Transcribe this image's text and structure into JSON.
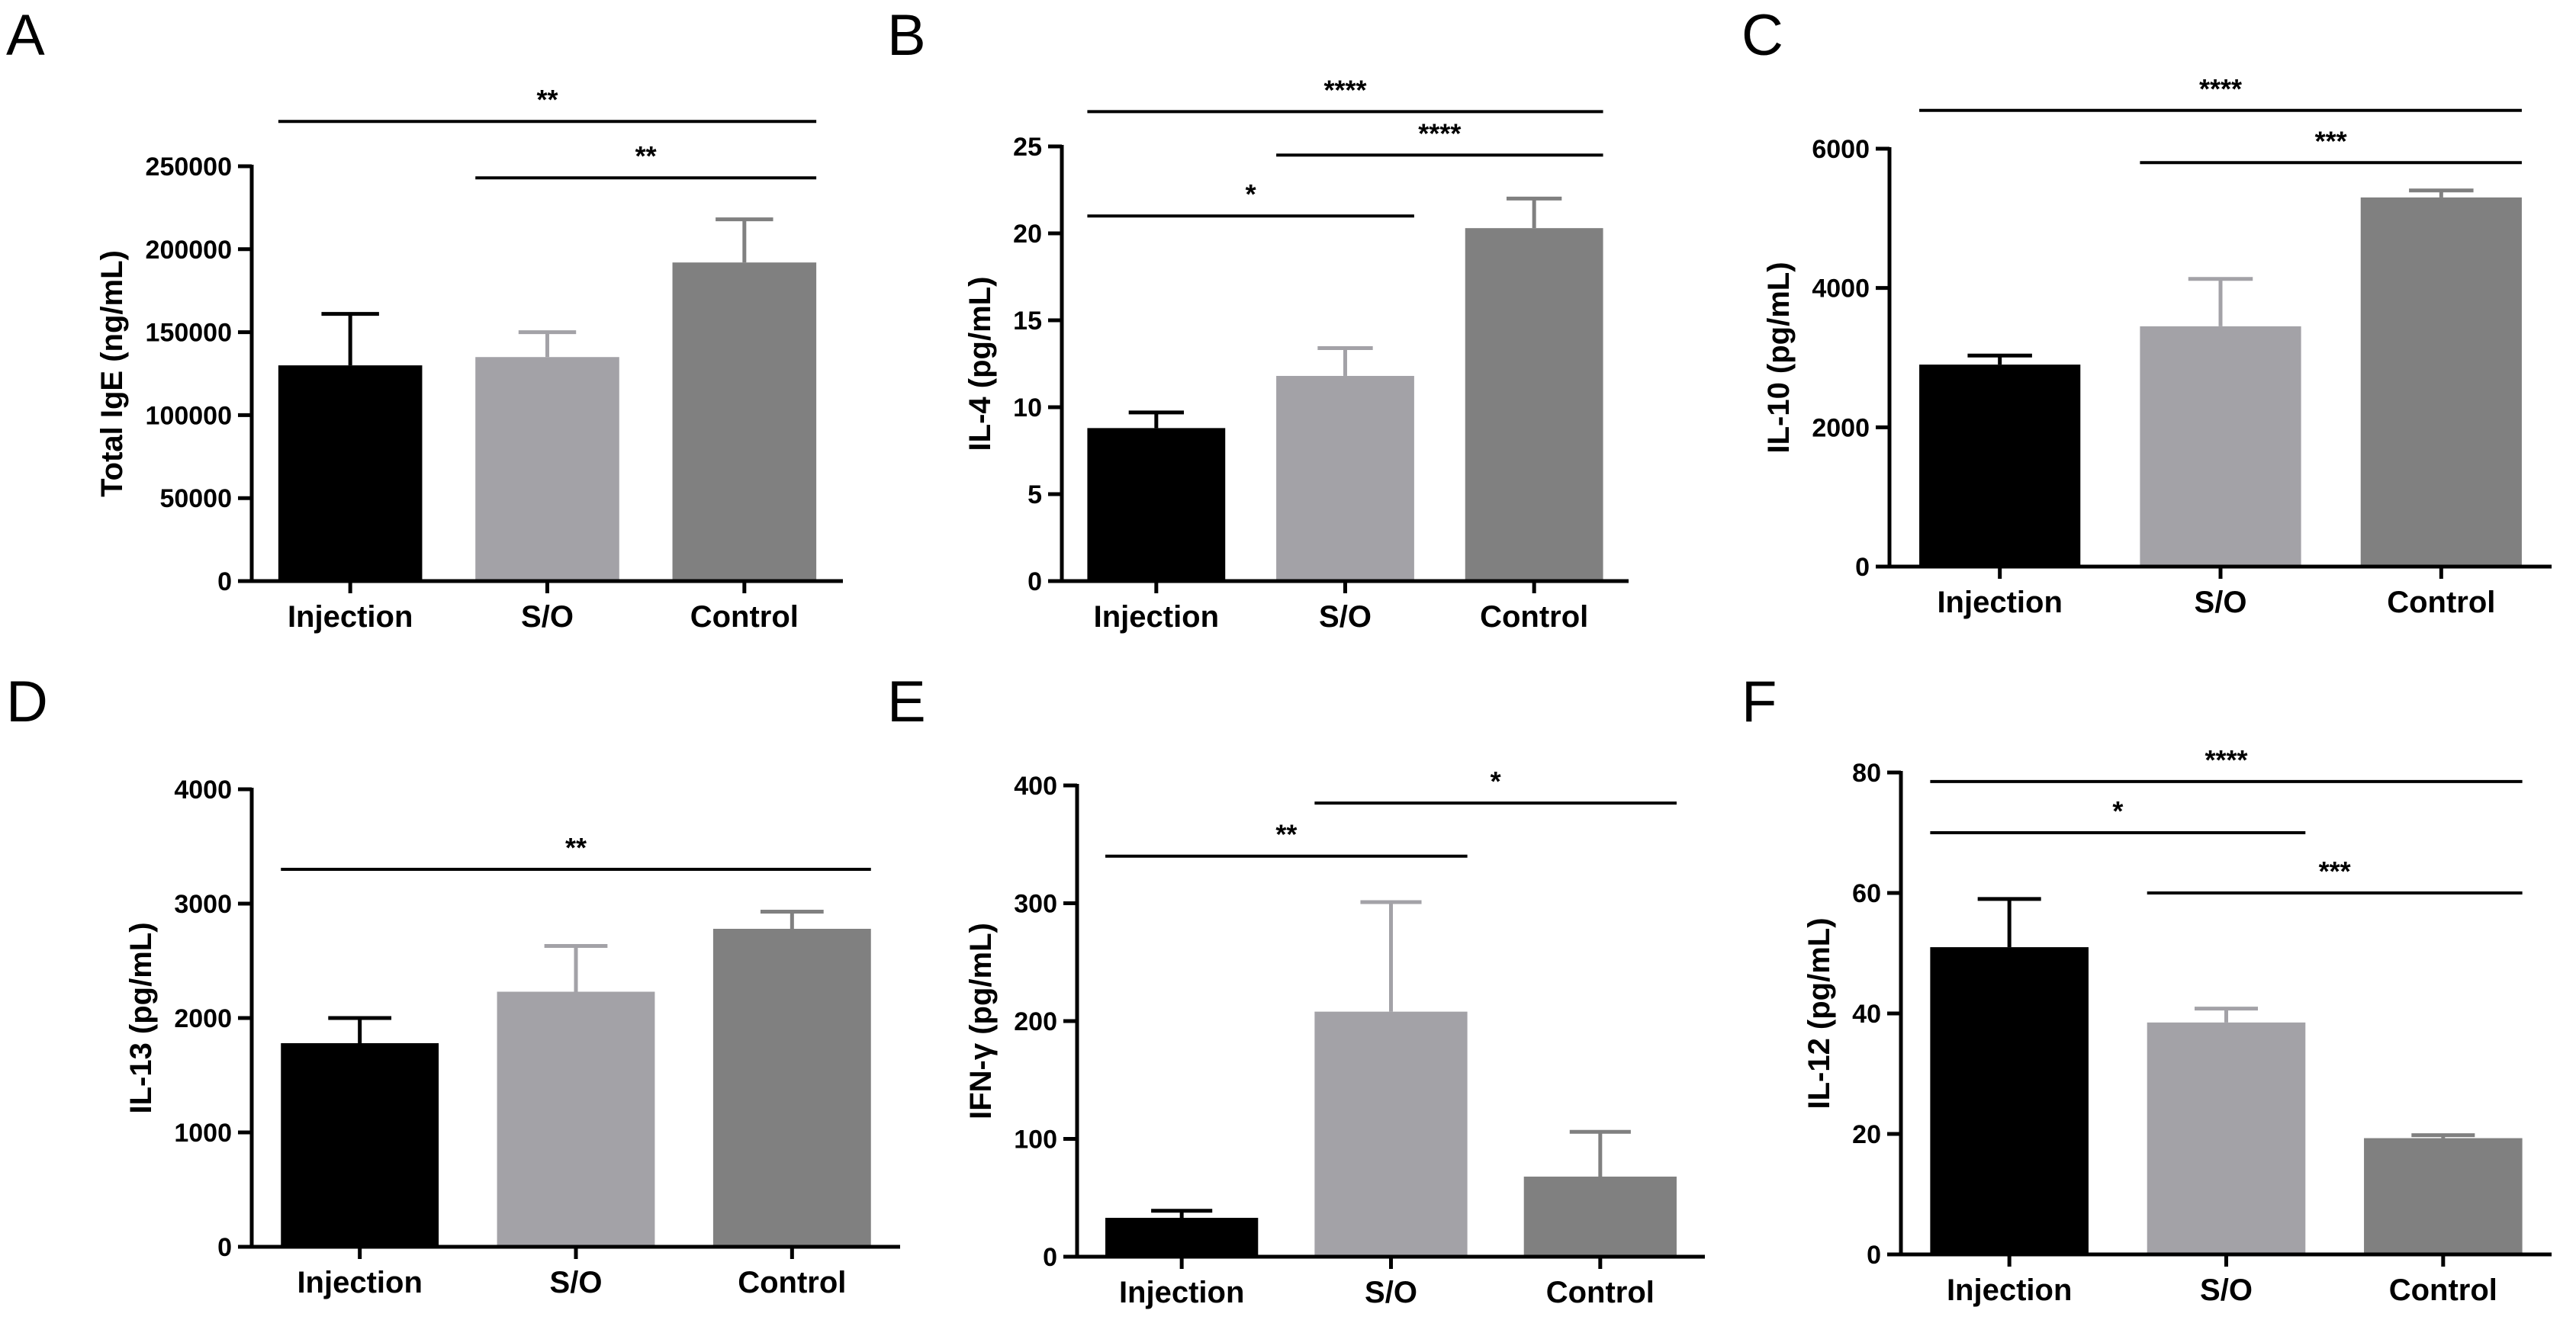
{
  "chart_data": [
    {
      "type": "bar",
      "panel": "A",
      "ylabel": "Total IgE (ng/mL)",
      "categories": [
        "Injection",
        "S/O",
        "Control"
      ],
      "values": [
        130000,
        135000,
        192000
      ],
      "errors": [
        31000,
        15000,
        26000
      ],
      "colors": [
        "#000000",
        "#a3a2a7",
        "#808080"
      ],
      "ylim": [
        0,
        250000
      ],
      "yticks": [
        0,
        50000,
        100000,
        150000,
        200000,
        250000
      ],
      "ytick_labels": [
        "0",
        "50000",
        "100000",
        "150000",
        "200000",
        "250000"
      ],
      "significance": [
        {
          "from": 0,
          "to": 2,
          "y": 277000,
          "label": "**"
        },
        {
          "from": 1,
          "to": 2,
          "y": 243000,
          "label": "**"
        }
      ]
    },
    {
      "type": "bar",
      "panel": "B",
      "ylabel": "IL-4 (pg/mL)",
      "categories": [
        "Injection",
        "S/O",
        "Control"
      ],
      "values": [
        8.8,
        11.8,
        20.3
      ],
      "errors": [
        0.9,
        1.6,
        1.7
      ],
      "colors": [
        "#000000",
        "#a3a2a7",
        "#808080"
      ],
      "ylim": [
        0,
        25
      ],
      "yticks": [
        0,
        5,
        10,
        15,
        20,
        25
      ],
      "ytick_labels": [
        "0",
        "5",
        "10",
        "15",
        "20",
        "25"
      ],
      "significance": [
        {
          "from": 0,
          "to": 2,
          "y": 27,
          "label": "****"
        },
        {
          "from": 1,
          "to": 2,
          "y": 24.5,
          "label": "****"
        },
        {
          "from": 0,
          "to": 1,
          "y": 21,
          "label": "*"
        }
      ]
    },
    {
      "type": "bar",
      "panel": "C",
      "ylabel": "IL-10 (pg/mL)",
      "categories": [
        "Injection",
        "S/O",
        "Control"
      ],
      "values": [
        2900,
        3450,
        5300
      ],
      "errors": [
        130,
        680,
        100
      ],
      "colors": [
        "#000000",
        "#a3a2a7",
        "#808080"
      ],
      "ylim": [
        0,
        6000
      ],
      "yticks": [
        0,
        2000,
        4000,
        6000
      ],
      "ytick_labels": [
        "0",
        "2000",
        "4000",
        "6000"
      ],
      "significance": [
        {
          "from": 0,
          "to": 2,
          "y": 6550,
          "label": "****"
        },
        {
          "from": 1,
          "to": 2,
          "y": 5800,
          "label": "***"
        }
      ]
    },
    {
      "type": "bar",
      "panel": "D",
      "ylabel": "IL-13 (pg/mL)",
      "categories": [
        "Injection",
        "S/O",
        "Control"
      ],
      "values": [
        1780,
        2230,
        2780
      ],
      "errors": [
        220,
        400,
        150
      ],
      "colors": [
        "#000000",
        "#a3a2a7",
        "#808080"
      ],
      "ylim": [
        0,
        4000
      ],
      "yticks": [
        0,
        1000,
        2000,
        3000,
        4000
      ],
      "ytick_labels": [
        "0",
        "1000",
        "2000",
        "3000",
        "4000"
      ],
      "significance": [
        {
          "from": 0,
          "to": 2,
          "y": 3300,
          "label": "**"
        }
      ]
    },
    {
      "type": "bar",
      "panel": "E",
      "ylabel": "IFN-γ (pg/mL)",
      "categories": [
        "Injection",
        "S/O",
        "Control"
      ],
      "values": [
        33,
        208,
        68
      ],
      "errors": [
        6,
        93,
        38
      ],
      "colors": [
        "#000000",
        "#a3a2a7",
        "#808080"
      ],
      "ylim": [
        0,
        400
      ],
      "yticks": [
        0,
        100,
        200,
        300,
        400
      ],
      "ytick_labels": [
        "0",
        "100",
        "200",
        "300",
        "400"
      ],
      "significance": [
        {
          "from": 1,
          "to": 2,
          "y": 385,
          "label": "*"
        },
        {
          "from": 0,
          "to": 1,
          "y": 340,
          "label": "**"
        }
      ]
    },
    {
      "type": "bar",
      "panel": "F",
      "ylabel": "IL-12 (pg/mL)",
      "categories": [
        "Injection",
        "S/O",
        "Control"
      ],
      "values": [
        51,
        38.5,
        19.3
      ],
      "errors": [
        8,
        2.3,
        0.5
      ],
      "colors": [
        "#000000",
        "#a3a2a7",
        "#808080"
      ],
      "ylim": [
        0,
        80
      ],
      "yticks": [
        0,
        20,
        40,
        60,
        80
      ],
      "ytick_labels": [
        "0",
        "20",
        "40",
        "60",
        "80"
      ],
      "significance": [
        {
          "from": 0,
          "to": 2,
          "y": 78.5,
          "label": "****"
        },
        {
          "from": 0,
          "to": 1,
          "y": 70,
          "label": "*"
        },
        {
          "from": 1,
          "to": 2,
          "y": 60,
          "label": "***"
        }
      ]
    }
  ]
}
